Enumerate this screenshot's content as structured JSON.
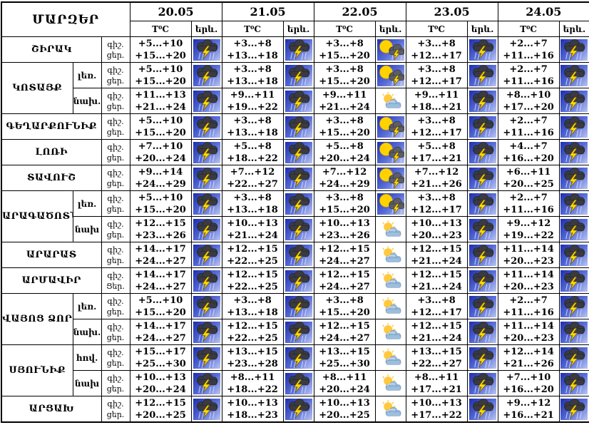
{
  "table": {
    "corner_title": "ՄԱՐԶԵՐ",
    "dates": [
      "20.05",
      "21.05",
      "22.05",
      "23.05",
      "24.05"
    ],
    "temp_header": "T⁰C",
    "phenomenon_header": "երև.",
    "icons": {
      "storm": "thunderstorm-icon",
      "sun-storm": "sun-thunderstorm-icon",
      "partly": "partly-cloudy-icon"
    },
    "colors": {
      "icon_sky_blue": "#1d2fae",
      "lightning_yellow": "#ffd900",
      "sun_yellow": "#ffd200",
      "cloud_dark": "#3a3a42",
      "cloud_light": "#9dbede",
      "border": "#000000",
      "background": "#ffffff"
    },
    "rows": [
      {
        "region": "ՇԻՐԱԿ",
        "sub": "",
        "night_label": "գիշ.",
        "day_label": "ցեր.",
        "cells": [
          {
            "night": "+5...+10",
            "day": "+15...+20",
            "icon": "storm"
          },
          {
            "night": "+3...+8",
            "day": "+13...+18",
            "icon": "storm"
          },
          {
            "night": "+3...+8",
            "day": "+15...+20",
            "icon": "sun-storm"
          },
          {
            "night": "+3...+8",
            "day": "+12...+17",
            "icon": "storm"
          },
          {
            "night": "+2...+7",
            "day": "+11...+16",
            "icon": "storm"
          }
        ]
      },
      {
        "region": "ԿՈՏԱՅՔ",
        "sub": "լեռ.",
        "night_label": "գիշ.",
        "day_label": "ցեր.",
        "cells": [
          {
            "night": "+5...+10",
            "day": "+15...+20",
            "icon": "storm"
          },
          {
            "night": "+3...+8",
            "day": "+13...+18",
            "icon": "storm"
          },
          {
            "night": "+3...+8",
            "day": "+15...+20",
            "icon": "sun-storm"
          },
          {
            "night": "+3...+8",
            "day": "+12...+17",
            "icon": "storm"
          },
          {
            "night": "+2...+7",
            "day": "+11...+16",
            "icon": "storm"
          }
        ]
      },
      {
        "region": "ԿՈՏԱՅՔ",
        "sub": "նախ.",
        "night_label": "գիշ.",
        "day_label": "ցեր.",
        "cells": [
          {
            "night": "+11...+13",
            "day": "+21...+24",
            "icon": "storm"
          },
          {
            "night": "+9...+11",
            "day": "+19...+22",
            "icon": "storm"
          },
          {
            "night": "+9...+11",
            "day": "+21...+24",
            "icon": "partly"
          },
          {
            "night": "+9...+11",
            "day": "+18...+21",
            "icon": "storm"
          },
          {
            "night": "+8...+10",
            "day": "+17...+20",
            "icon": "storm"
          }
        ]
      },
      {
        "region": "ԳԵՂԱՐՔՈՒՆԻՔ",
        "sub": "",
        "night_label": "գիշ.",
        "day_label": "ցեր.",
        "cells": [
          {
            "night": "+5...+10",
            "day": "+15...+20",
            "icon": "storm"
          },
          {
            "night": "+3...+8",
            "day": "+13...+18",
            "icon": "storm"
          },
          {
            "night": "+3...+8",
            "day": "+15...+20",
            "icon": "sun-storm"
          },
          {
            "night": "+3...+8",
            "day": "+12...+17",
            "icon": "storm"
          },
          {
            "night": "+2...+7",
            "day": "+11...+16",
            "icon": "storm"
          }
        ]
      },
      {
        "region": "ԼՈՌԻ",
        "sub": "",
        "night_label": "գիշ.",
        "day_label": "ցեր.",
        "cells": [
          {
            "night": "+7...+10",
            "day": "+20...+24",
            "icon": "storm"
          },
          {
            "night": "+5...+8",
            "day": "+18...+22",
            "icon": "storm"
          },
          {
            "night": "+5...+8",
            "day": "+20...+24",
            "icon": "sun-storm"
          },
          {
            "night": "+5...+8",
            "day": "+17...+21",
            "icon": "storm"
          },
          {
            "night": "+4...+7",
            "day": "+16...+20",
            "icon": "storm"
          }
        ]
      },
      {
        "region": "ՏԱՎՈՒՇ",
        "sub": "",
        "night_label": "գիշ.",
        "day_label": "ցեր.",
        "cells": [
          {
            "night": "+9...+14",
            "day": "+24...+29",
            "icon": "storm"
          },
          {
            "night": "+7...+12",
            "day": "+22...+27",
            "icon": "storm"
          },
          {
            "night": "+7...+12",
            "day": "+24...+29",
            "icon": "sun-storm"
          },
          {
            "night": "+7...+12",
            "day": "+21...+26",
            "icon": "storm"
          },
          {
            "night": "+6...+11",
            "day": "+20...+25",
            "icon": "storm"
          }
        ]
      },
      {
        "region": "ԱՐԱԳԱԾՈՏՆ",
        "sub": "լեռ.",
        "night_label": "գիշ.",
        "day_label": "ցեր.",
        "cells": [
          {
            "night": "+5...+10",
            "day": "+15...+20",
            "icon": "storm"
          },
          {
            "night": "+3...+8",
            "day": "+13...+18",
            "icon": "storm"
          },
          {
            "night": "+3...+8",
            "day": "+15...+20",
            "icon": "sun-storm"
          },
          {
            "night": "+3...+8",
            "day": "+12...+17",
            "icon": "storm"
          },
          {
            "night": "+2...+7",
            "day": "+11...+16",
            "icon": "storm"
          }
        ]
      },
      {
        "region": "ԱՐԱԳԱԾՈՏՆ",
        "sub": "նախ",
        "night_label": "գիշ.",
        "day_label": "ցեր.",
        "cells": [
          {
            "night": "+12...+15",
            "day": "+23...+26",
            "icon": "storm"
          },
          {
            "night": "+10...+13",
            "day": "+21...+24",
            "icon": "storm"
          },
          {
            "night": "+10...+13",
            "day": "+23...+26",
            "icon": "partly"
          },
          {
            "night": "+10...+13",
            "day": "+20...+23",
            "icon": "storm"
          },
          {
            "night": "+9...+12",
            "day": "+19...+22",
            "icon": "storm"
          }
        ]
      },
      {
        "region": "ԱՐԱՐԱՏ",
        "sub": "",
        "night_label": "գիշ.",
        "day_label": "ցեր.",
        "cells": [
          {
            "night": "+14...+17",
            "day": "+24...+27",
            "icon": "storm"
          },
          {
            "night": "+12...+15",
            "day": "+22...+25",
            "icon": "storm"
          },
          {
            "night": "+12...+15",
            "day": "+24...+27",
            "icon": "partly"
          },
          {
            "night": "+12...+15",
            "day": "+21...+24",
            "icon": "storm"
          },
          {
            "night": "+11...+14",
            "day": "+20...+23",
            "icon": "storm"
          }
        ]
      },
      {
        "region": "ԱՐՄԱՎԻՐ",
        "sub": "",
        "night_label": "գիշ.",
        "day_label": "Ցեր.",
        "cells": [
          {
            "night": "+14...+17",
            "day": "+24...+27",
            "icon": "storm"
          },
          {
            "night": "+12...+15",
            "day": "+22...+25",
            "icon": "storm"
          },
          {
            "night": "+12...+15",
            "day": "+24...+27",
            "icon": "partly"
          },
          {
            "night": "+12...+15",
            "day": "+21...+24",
            "icon": "storm"
          },
          {
            "night": "+11...+14",
            "day": "+20...+23",
            "icon": "storm"
          }
        ]
      },
      {
        "region": "ՎԱՅՈՑ ՁՈՐ",
        "sub": "լեռ.",
        "night_label": "գիշ.",
        "day_label": "ցեր.",
        "cells": [
          {
            "night": "+5...+10",
            "day": "+15...+20",
            "icon": "storm"
          },
          {
            "night": "+3...+8",
            "day": "+13...+18",
            "icon": "storm"
          },
          {
            "night": "+3...+8",
            "day": "+15...+20",
            "icon": "partly"
          },
          {
            "night": "+3...+8",
            "day": "+12...+17",
            "icon": "storm"
          },
          {
            "night": "+2...+7",
            "day": "+11...+16",
            "icon": "storm"
          }
        ]
      },
      {
        "region": "ՎԱՅՈՑ ՁՈՐ",
        "sub": "նախ.",
        "night_label": "գիշ.",
        "day_label": "ցեր.",
        "cells": [
          {
            "night": "+14...+17",
            "day": "+24...+27",
            "icon": "storm"
          },
          {
            "night": "+12...+15",
            "day": "+22...+25",
            "icon": "storm"
          },
          {
            "night": "+12...+15",
            "day": "+24...+27",
            "icon": "partly"
          },
          {
            "night": "+12...+15",
            "day": "+21...+24",
            "icon": "storm"
          },
          {
            "night": "+11...+14",
            "day": "+20...+23",
            "icon": "storm"
          }
        ]
      },
      {
        "region": "ՍՅՈՒՆԻՔ",
        "sub": "հով.",
        "night_label": "գիշ.",
        "day_label": "ցեր.",
        "cells": [
          {
            "night": "+15...+17",
            "day": "+25...+30",
            "icon": "storm"
          },
          {
            "night": "+13...+15",
            "day": "+23...+28",
            "icon": "storm"
          },
          {
            "night": "+13...+15",
            "day": "+25...+30",
            "icon": "partly"
          },
          {
            "night": "+13...+15",
            "day": "+22...+27",
            "icon": "storm"
          },
          {
            "night": "+12...+14",
            "day": "+21...+26",
            "icon": "storm"
          }
        ]
      },
      {
        "region": "ՍՅՈՒՆԻՔ",
        "sub": "նախ",
        "night_label": "գիշ.",
        "day_label": "ցեր.",
        "cells": [
          {
            "night": "+10...+13",
            "day": "+20...+24",
            "icon": "storm"
          },
          {
            "night": "+8...+11",
            "day": "+18...+22",
            "icon": "storm"
          },
          {
            "night": "+8...+11",
            "day": "+20...+24",
            "icon": "partly"
          },
          {
            "night": "+8...+11",
            "day": "+17...+21",
            "icon": "storm"
          },
          {
            "night": "+7...+10",
            "day": "+16...+20",
            "icon": "storm"
          }
        ]
      },
      {
        "region": "ԱՐՑԱԽ",
        "sub": "",
        "night_label": "գիշ.",
        "day_label": "ցեր.",
        "cells": [
          {
            "night": "+12...+15",
            "day": "+20...+25",
            "icon": "storm"
          },
          {
            "night": "+10...+13",
            "day": "+18...+23",
            "icon": "storm"
          },
          {
            "night": "+10...+13",
            "day": "+20...+25",
            "icon": "partly"
          },
          {
            "night": "+10...+13",
            "day": "+17...+22",
            "icon": "storm"
          },
          {
            "night": "+9...+12",
            "day": "+16...+21",
            "icon": "storm"
          }
        ]
      }
    ]
  }
}
